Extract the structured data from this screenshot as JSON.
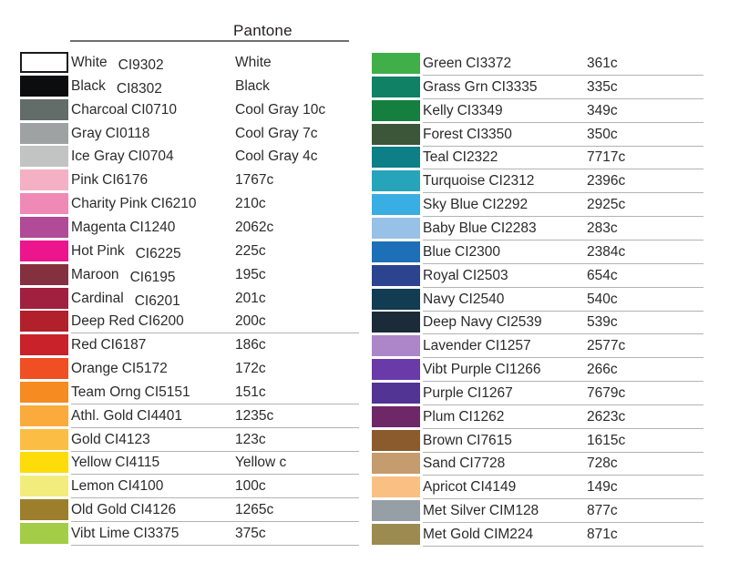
{
  "header": {
    "pantone_label": "Pantone"
  },
  "colors": {
    "background": "#ffffff",
    "text": "#2b2b2b",
    "header_rule": "#6f6f6f",
    "row_divider": "#b3b3b3",
    "white_swatch_border": "#1a1a1a"
  },
  "columns": [
    {
      "side": "left",
      "rows": [
        {
          "name": "White",
          "code": "CI9302",
          "pantone": "White",
          "swatch": "#ffffff",
          "border": true,
          "offset_code": true,
          "divider": false
        },
        {
          "name": "Black",
          "code": "CI8302",
          "pantone": "Black",
          "swatch": "#0b0d0e",
          "offset_code": true,
          "divider": false
        },
        {
          "name": "Charcoal",
          "code": "CI0710",
          "pantone": "Cool Gray 10c",
          "swatch": "#626d6a",
          "divider": false
        },
        {
          "name": "Gray",
          "code": "CI0118",
          "pantone": "Cool Gray 7c",
          "swatch": "#9ea2a2",
          "divider": false
        },
        {
          "name": "Ice Gray",
          "code": "CI0704",
          "pantone": "Cool Gray 4c",
          "swatch": "#c2c3c3",
          "divider": false
        },
        {
          "name": "Pink",
          "code": "CI6176",
          "pantone": "1767c",
          "swatch": "#f5b0c6",
          "divider": false
        },
        {
          "name": "Charity Pink",
          "code": "CI6210",
          "pantone": "210c",
          "swatch": "#ef8ab6",
          "divider": false
        },
        {
          "name": "Magenta",
          "code": "CI1240",
          "pantone": "2062c",
          "swatch": "#b14a97",
          "divider": false
        },
        {
          "name": "Hot Pink",
          "code": "CI6225",
          "pantone": "225c",
          "swatch": "#ec158d",
          "offset_code": true,
          "divider": false
        },
        {
          "name": "Maroon",
          "code": "CI6195",
          "pantone": "195c",
          "swatch": "#84303f",
          "offset_code": true,
          "divider": false
        },
        {
          "name": "Cardinal",
          "code": "CI6201",
          "pantone": "201c",
          "swatch": "#a1203f",
          "offset_code": true,
          "divider": false
        },
        {
          "name": "Deep Red",
          "code": "CI6200",
          "pantone": "200c",
          "swatch": "#b2202b",
          "divider": true
        },
        {
          "name": "Red",
          "code": "CI6187",
          "pantone": "186c",
          "swatch": "#c9222a",
          "divider": false
        },
        {
          "name": "Orange",
          "code": "CI5172",
          "pantone": "172c",
          "swatch": "#f04e23",
          "divider": false
        },
        {
          "name": "Team Orng",
          "code": "CI5151",
          "pantone": "151c",
          "swatch": "#f68b22",
          "divider": true
        },
        {
          "name": "Athl. Gold",
          "code": "CI4401",
          "pantone": "1235c",
          "swatch": "#fbaa3c",
          "divider": true
        },
        {
          "name": "Gold",
          "code": "CI4123",
          "pantone": "123c",
          "swatch": "#fcbd44",
          "divider": true
        },
        {
          "name": "Yellow",
          "code": "CI4115",
          "pantone": "Yellow c",
          "swatch": "#fddc0a",
          "divider": true
        },
        {
          "name": "Lemon",
          "code": "CI4100",
          "pantone": "100c",
          "swatch": "#f2ec7d",
          "divider": true
        },
        {
          "name": "Old Gold",
          "code": "CI4126",
          "pantone": "1265c",
          "swatch": "#9c7e2d",
          "divider": true
        },
        {
          "name": "Vibt Lime",
          "code": "CI3375",
          "pantone": "375c",
          "swatch": "#a4cd47",
          "divider": true
        }
      ]
    },
    {
      "side": "right",
      "rows": [
        {
          "name": "Green",
          "code": "CI3372",
          "pantone": "361c",
          "swatch": "#40ae49",
          "divider": true
        },
        {
          "name": "Grass Grn",
          "code": "CI3335",
          "pantone": "335c",
          "swatch": "#108165",
          "divider": true
        },
        {
          "name": "Kelly",
          "code": "CI3349",
          "pantone": "349c",
          "swatch": "#147f3f",
          "divider": true
        },
        {
          "name": "Forest",
          "code": "CI3350",
          "pantone": "350c",
          "swatch": "#3b5638",
          "divider": true
        },
        {
          "name": "Teal",
          "code": "CI2322",
          "pantone": "7717c",
          "swatch": "#0d7f87",
          "divider": true
        },
        {
          "name": "Turquoise",
          "code": "CI2312",
          "pantone": "2396c",
          "swatch": "#26a5ba",
          "divider": true
        },
        {
          "name": "Sky Blue",
          "code": "CI2292",
          "pantone": "2925c",
          "swatch": "#39aee2",
          "divider": true
        },
        {
          "name": "Baby Blue",
          "code": "CI2283",
          "pantone": "283c",
          "swatch": "#97c1e7",
          "divider": true
        },
        {
          "name": "Blue",
          "code": "CI2300",
          "pantone": "2384c",
          "swatch": "#1d6fb7",
          "divider": true
        },
        {
          "name": "Royal",
          "code": "CI2503",
          "pantone": "654c",
          "swatch": "#2c4390",
          "divider": true
        },
        {
          "name": "Navy",
          "code": "CI2540",
          "pantone": "540c",
          "swatch": "#123c52",
          "divider": true
        },
        {
          "name": "Deep Navy",
          "code": "CI2539",
          "pantone": "539c",
          "swatch": "#1c2b3a",
          "divider": true
        },
        {
          "name": "Lavender",
          "code": "CI1257",
          "pantone": "2577c",
          "swatch": "#ad86c9",
          "divider": true
        },
        {
          "name": "Vibt Purple",
          "code": "CI1266",
          "pantone": "266c",
          "swatch": "#6a3aa9",
          "divider": true
        },
        {
          "name": "Purple",
          "code": "CI1267",
          "pantone": "7679c",
          "swatch": "#523495",
          "divider": true
        },
        {
          "name": "Plum",
          "code": "CI1262",
          "pantone": "2623c",
          "swatch": "#6f2867",
          "divider": true
        },
        {
          "name": "Brown",
          "code": "CI7615",
          "pantone": "1615c",
          "swatch": "#8b5b2e",
          "divider": true
        },
        {
          "name": "Sand",
          "code": "CI7728",
          "pantone": "728c",
          "swatch": "#c59c6e",
          "divider": true
        },
        {
          "name": "Apricot",
          "code": "CI4149",
          "pantone": "149c",
          "swatch": "#fac083",
          "divider": true
        },
        {
          "name": "Met Silver",
          "code": "CIM128",
          "pantone": "877c",
          "swatch": "#969ea6",
          "divider": true
        },
        {
          "name": "Met Gold",
          "code": "CIM224",
          "pantone": "871c",
          "swatch": "#9b8b51",
          "divider": true
        }
      ]
    }
  ]
}
